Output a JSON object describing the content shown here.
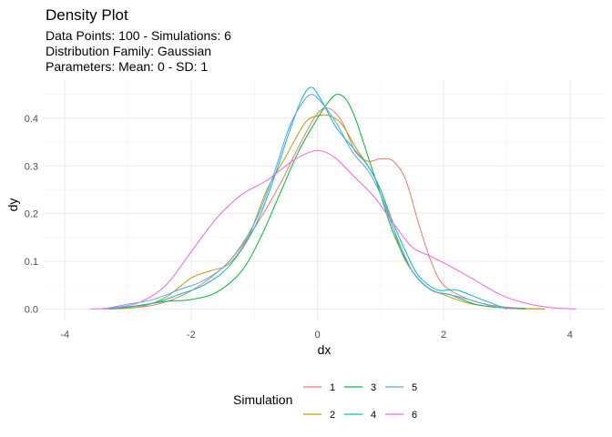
{
  "chart_data": {
    "type": "line",
    "title": "Density Plot",
    "subtitle": [
      "Data Points: 100 - Simulations: 6",
      "Distribution Family: Gaussian",
      "Parameters: Mean: 0 - SD: 1"
    ],
    "xlabel": "dx",
    "ylabel": "dy",
    "xlim": [
      -4.35,
      4.55
    ],
    "ylim": [
      -0.024,
      0.48
    ],
    "x_ticks": [
      -4,
      -2,
      0,
      2,
      4
    ],
    "x_tick_labels": [
      "-4",
      "-2",
      "0",
      "2",
      "4"
    ],
    "y_ticks": [
      0.0,
      0.1,
      0.2,
      0.3,
      0.4
    ],
    "y_tick_labels": [
      "0.0",
      "0.1",
      "0.2",
      "0.3",
      "0.4"
    ],
    "grid": true,
    "legend": {
      "title": "Simulation",
      "position": "bottom"
    },
    "series": [
      {
        "name": "1",
        "color": "#F8766D",
        "x": [
          -3.3,
          -3.0,
          -2.6,
          -2.2,
          -1.8,
          -1.4,
          -1.0,
          -0.6,
          -0.3,
          0.0,
          0.2,
          0.4,
          0.6,
          0.8,
          1.0,
          1.2,
          1.4,
          1.6,
          1.8,
          2.0,
          2.4,
          2.8,
          3.2,
          3.6
        ],
        "y": [
          0.0,
          0.002,
          0.008,
          0.025,
          0.055,
          0.1,
          0.17,
          0.26,
          0.34,
          0.41,
          0.42,
          0.39,
          0.33,
          0.31,
          0.315,
          0.31,
          0.27,
          0.18,
          0.1,
          0.05,
          0.02,
          0.007,
          0.002,
          0.0
        ]
      },
      {
        "name": "2",
        "color": "#B79F00",
        "x": [
          -3.3,
          -2.8,
          -2.4,
          -2.0,
          -1.7,
          -1.4,
          -1.1,
          -0.8,
          -0.5,
          -0.2,
          0.0,
          0.2,
          0.4,
          0.6,
          0.8,
          1.0,
          1.2,
          1.4,
          1.7,
          2.0,
          2.4,
          2.8,
          3.2,
          3.6
        ],
        "y": [
          0.0,
          0.005,
          0.025,
          0.065,
          0.08,
          0.095,
          0.15,
          0.25,
          0.32,
          0.39,
          0.405,
          0.405,
          0.385,
          0.34,
          0.3,
          0.25,
          0.17,
          0.1,
          0.05,
          0.03,
          0.012,
          0.004,
          0.001,
          0.0
        ]
      },
      {
        "name": "3",
        "color": "#00BA38",
        "x": [
          -3.3,
          -2.8,
          -2.4,
          -2.0,
          -1.6,
          -1.2,
          -0.9,
          -0.6,
          -0.3,
          0.0,
          0.15,
          0.3,
          0.45,
          0.6,
          0.8,
          1.0,
          1.2,
          1.5,
          1.8,
          2.1,
          2.5,
          2.9,
          3.3
        ],
        "y": [
          0.0,
          0.008,
          0.016,
          0.02,
          0.035,
          0.08,
          0.15,
          0.24,
          0.33,
          0.4,
          0.43,
          0.45,
          0.44,
          0.4,
          0.32,
          0.24,
          0.16,
          0.08,
          0.04,
          0.03,
          0.01,
          0.003,
          0.0
        ]
      },
      {
        "name": "4",
        "color": "#00BFC4",
        "x": [
          -3.4,
          -3.0,
          -2.6,
          -2.2,
          -1.8,
          -1.4,
          -1.0,
          -0.7,
          -0.45,
          -0.25,
          -0.1,
          0.05,
          0.3,
          0.55,
          0.8,
          1.0,
          1.2,
          1.4,
          1.6,
          1.9,
          2.2,
          2.6,
          3.0
        ],
        "y": [
          0.0,
          0.004,
          0.012,
          0.03,
          0.05,
          0.09,
          0.17,
          0.27,
          0.37,
          0.44,
          0.465,
          0.44,
          0.38,
          0.34,
          0.3,
          0.25,
          0.18,
          0.12,
          0.07,
          0.04,
          0.04,
          0.02,
          0.0
        ]
      },
      {
        "name": "5",
        "color": "#619CFF",
        "x": [
          -3.4,
          -3.0,
          -2.6,
          -2.2,
          -1.8,
          -1.4,
          -1.0,
          -0.7,
          -0.45,
          -0.25,
          -0.1,
          0.05,
          0.3,
          0.55,
          0.8,
          1.0,
          1.2,
          1.5,
          1.8,
          2.1,
          2.4,
          2.8,
          3.2
        ],
        "y": [
          0.0,
          0.01,
          0.02,
          0.04,
          0.06,
          0.1,
          0.18,
          0.28,
          0.38,
          0.43,
          0.45,
          0.435,
          0.39,
          0.33,
          0.29,
          0.24,
          0.17,
          0.08,
          0.04,
          0.03,
          0.02,
          0.005,
          0.0
        ]
      },
      {
        "name": "6",
        "color": "#F564E3",
        "x": [
          -3.6,
          -3.2,
          -2.8,
          -2.4,
          -2.0,
          -1.6,
          -1.2,
          -0.8,
          -0.4,
          -0.1,
          0.1,
          0.3,
          0.6,
          0.9,
          1.2,
          1.5,
          1.8,
          2.1,
          2.5,
          2.9,
          3.3,
          3.7,
          4.1
        ],
        "y": [
          0.0,
          0.003,
          0.015,
          0.05,
          0.12,
          0.19,
          0.24,
          0.27,
          0.31,
          0.33,
          0.33,
          0.315,
          0.275,
          0.235,
          0.18,
          0.13,
          0.11,
          0.09,
          0.06,
          0.03,
          0.012,
          0.003,
          0.0
        ]
      }
    ]
  }
}
